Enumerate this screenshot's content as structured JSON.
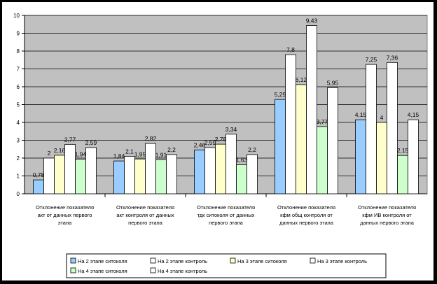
{
  "chart_data": {
    "type": "bar",
    "ylim": [
      0,
      10
    ],
    "y_ticks": [
      "0",
      "1",
      "2",
      "3",
      "4",
      "5",
      "6",
      "7",
      "8",
      "9",
      "10"
    ],
    "grid": true,
    "legend_position": "bottom",
    "categories": [
      "Отклонение показателя акт от данных первого этапа",
      "Отклонение показателя акт контроля от данных первого этапа",
      "Отклонение показателя тдк ситоколя от данных первого этапа",
      "Отклонение показателя кфм общ контроля от данных первого этапа",
      "Отклонение показателя кфм ИВ контроля от данных первого этапа"
    ],
    "series": [
      {
        "name": "На 2 этапе ситоколя",
        "color": "#99ccff",
        "values": [
          0.78,
          1.84,
          2.46,
          5.29,
          4.15
        ],
        "labels": [
          "0,78",
          "1,84",
          "2,46",
          "5,29",
          "4,15"
        ]
      },
      {
        "name": "На 2 этапе контроль",
        "color": "#ffffff",
        "values": [
          2.0,
          2.1,
          2.59,
          7.8,
          7.25
        ],
        "labels": [
          "2",
          "2,1",
          "2,59",
          "7,8",
          "7,25"
        ]
      },
      {
        "name": "На 3 этапе ситоколя",
        "color": "#ffffcc",
        "values": [
          2.16,
          1.95,
          2.78,
          6.12,
          4.0
        ],
        "labels": [
          "2,16",
          "1,95",
          "2,78",
          "6,12",
          "4"
        ]
      },
      {
        "name": "На 3 этапе контроль",
        "color": "#ffffff",
        "values": [
          2.77,
          2.82,
          3.34,
          9.43,
          7.36
        ],
        "labels": [
          "2,77",
          "2,82",
          "3,34",
          "9,43",
          "7,36"
        ]
      },
      {
        "name": "На 4 этапе ситоколя",
        "color": "#ccffcc",
        "values": [
          1.94,
          1.91,
          1.63,
          3.77,
          2.15
        ],
        "labels": [
          "1,94",
          "1,91",
          "1,63",
          "3,77",
          "2,15"
        ]
      },
      {
        "name": "На 4 этапе контроль",
        "color": "#ffffff",
        "values": [
          2.59,
          2.2,
          2.2,
          5.95,
          4.15
        ],
        "labels": [
          "2,59",
          "2,2",
          "2,2",
          "5,95",
          "4,15"
        ]
      }
    ],
    "colors": {
      "plot_bg": "#c0c0c0",
      "frame": "#000000",
      "page_bg": "#ffffff"
    }
  }
}
